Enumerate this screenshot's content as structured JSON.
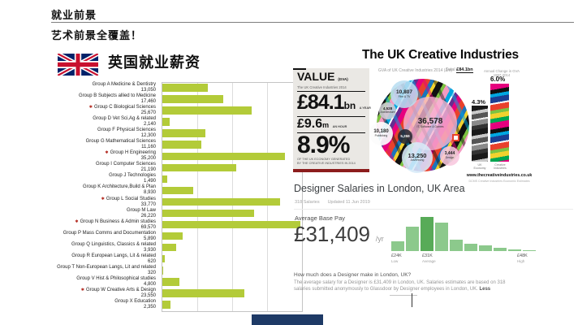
{
  "slide": {
    "title": "就业前景",
    "subtitle": "艺术前景全覆盖！"
  },
  "uk_salary_chart": {
    "heading": "英国就业薪资",
    "bar_color": "#b3cb39",
    "marker_color": "#b3281e",
    "axis_max": 40000,
    "rows": [
      {
        "label": "Group A Medicine & Dentistry",
        "value": "13,050",
        "marked": false
      },
      {
        "label": "Group B Subjects allied to Medicine",
        "value": "17,460",
        "marked": false
      },
      {
        "label": "Group C Biological Sciences",
        "value": "25,670",
        "marked": true
      },
      {
        "label": "Group D Vet Sci,Ag & related",
        "value": "2,140",
        "marked": false
      },
      {
        "label": "Group F Physical Sciences",
        "value": "12,300",
        "marked": false
      },
      {
        "label": "Group G Mathematical Sciences",
        "value": "11,160",
        "marked": false
      },
      {
        "label": "Group H Engineering",
        "value": "35,200",
        "marked": true
      },
      {
        "label": "Group I Computer Sciences",
        "value": "21,190",
        "marked": false
      },
      {
        "label": "Group J Technologies",
        "value": "1,490",
        "marked": false
      },
      {
        "label": "Group K Architecture,Build & Plan",
        "value": "8,930",
        "marked": false
      },
      {
        "label": "Group L Social Studies",
        "value": "33,770",
        "marked": true
      },
      {
        "label": "Group M Law",
        "value": "26,220",
        "marked": false
      },
      {
        "label": "Group N Business & Admin studies",
        "value": "69,570",
        "marked": true
      },
      {
        "label": "Group P Mass Comms and Documentation",
        "value": "5,890",
        "marked": false
      },
      {
        "label": "Group Q Linguistics, Classics & related",
        "value": "3,930",
        "marked": false
      },
      {
        "label": "Group R European Langs, Lit & related",
        "value": "620",
        "marked": false
      },
      {
        "label": "Group T Non-European Langs, Lit and related",
        "value": "320",
        "marked": false
      },
      {
        "label": "Group V Hist & Philosophical studies",
        "value": "4,800",
        "marked": false
      },
      {
        "label": "Group W Creative Arts & Design",
        "value": "23,550",
        "marked": true
      },
      {
        "label": "Group X Education",
        "value": "2,350",
        "marked": false
      }
    ]
  },
  "creative_industries": {
    "title": "The UK Creative Industries",
    "subtitle": "GVA of UK Creative Industries 2014 (£m)",
    "total_prefix": "Total ",
    "total_value": "£84.1bn",
    "value_card": {
      "heading": "VALUE",
      "heading_suffix": "(GVA)",
      "subheading": "The UK Creative Industries 2014",
      "stat_year_value": "£84.1",
      "stat_year_unit": "bn",
      "stat_year_note": "A YEAR",
      "stat_hour_value": "£9.6",
      "stat_hour_unit": "m",
      "stat_hour_note": "AN HOUR",
      "stat_share": "8.9%",
      "caption_line1": "OF THE UK ECONOMY GENERATED",
      "caption_line2": "BY THE CREATIVE INDUSTRIES IN 2014"
    },
    "pie_bubbles": [
      {
        "value": "36,578",
        "label": "IT, Software & Games"
      },
      {
        "value": "13,250",
        "label": "Advertising"
      },
      {
        "value": "10,807",
        "label": "Film & TV"
      },
      {
        "value": "10,180",
        "label": "Publishing"
      },
      {
        "value": "5,259",
        "label": ""
      },
      {
        "value": "4,528",
        "label": "Architecture"
      },
      {
        "value": "3,444",
        "label": "Design"
      }
    ],
    "growth": {
      "header_line1": "Annual Change in GVA",
      "header_line2": "1997-2014",
      "bars": [
        {
          "label_line1": "UK",
          "label_line2": "Economy",
          "value": "4.3%"
        },
        {
          "label_line1": "Creative",
          "label_line2": "Industries",
          "value": "6.0%"
        }
      ],
      "website": "www.thecreativeindustries.co.uk",
      "source": "DCMS Creative Industries Economic Estimates"
    }
  },
  "glassdoor": {
    "heading": "Designer Salaries in London, UK Area",
    "meta_salaries": "318 Salaries",
    "meta_updated": "Updated 11 Jun 2019",
    "avg_label": "Average Base Pay",
    "avg_value": "£31,409",
    "avg_unit": "/yr",
    "histogram": {
      "bar_color": "#8cc98c",
      "highlight_color": "#58ab58",
      "highlight_index": 2,
      "rel_heights": [
        12,
        30,
        42,
        35,
        14,
        9,
        7,
        4,
        2,
        1
      ],
      "ticks": [
        {
          "value": "£24K",
          "label": "Low"
        },
        {
          "value": "£31K",
          "label": "Average"
        },
        {
          "value": "£48K",
          "label": "High"
        }
      ]
    },
    "question": "How much does a Designer make in London, UK?",
    "answer_line1": "The average salary for a Designer is £31,409 in London, UK. Salaries estimates are based on 318",
    "answer_line2": "salaries submitted anonymously to Glassdoor by Designer employees in London, UK. ",
    "answer_more": "Less"
  },
  "chart_data": [
    {
      "type": "bar",
      "orientation": "horizontal",
      "title": "英国就业薪资",
      "categories": [
        "Group A Medicine & Dentistry",
        "Group B Subjects allied to Medicine",
        "Group C Biological Sciences",
        "Group D Vet Sci,Ag & related",
        "Group F Physical Sciences",
        "Group G Mathematical Sciences",
        "Group H Engineering",
        "Group I Computer Sciences",
        "Group J Technologies",
        "Group K Architecture,Build & Plan",
        "Group L Social Studies",
        "Group M Law",
        "Group N Business & Admin studies",
        "Group P Mass Comms and Documentation",
        "Group Q Linguistics, Classics & related",
        "Group R European Langs, Lit & related",
        "Group T Non-European Langs, Lit and related",
        "Group V Hist & Philosophical studies",
        "Group W Creative Arts & Design",
        "Group X Education"
      ],
      "values": [
        13050,
        17460,
        25670,
        2140,
        12300,
        11160,
        35200,
        21190,
        1490,
        8930,
        33770,
        26220,
        69570,
        5890,
        3930,
        620,
        320,
        4800,
        23550,
        2350
      ],
      "highlighted_categories": [
        "Group C Biological Sciences",
        "Group H Engineering",
        "Group L Social Studies",
        "Group N Business & Admin studies",
        "Group W Creative Arts & Design"
      ],
      "xlim": [
        0,
        40000
      ],
      "grid": true,
      "legend": false,
      "bar_color": "#b3cb39"
    },
    {
      "type": "pie",
      "title": "GVA of UK Creative Industries 2014 (£m)",
      "labels": [
        "IT, Software & Games",
        "Advertising",
        "Film & TV",
        "Publishing",
        "Architecture",
        "Design",
        ""
      ],
      "values": [
        36578,
        13250,
        10807,
        10180,
        4528,
        3444,
        5259
      ],
      "total": "£84.1bn",
      "annotations": [
        "VALUE (GVA) £84.1bn A YEAR",
        "£9.6m AN HOUR",
        "8.9%"
      ]
    },
    {
      "type": "bar",
      "title": "Annual Change in GVA 1997-2014",
      "categories": [
        "UK Economy",
        "Creative Industries"
      ],
      "values": [
        4.3,
        6.0
      ],
      "unit": "%"
    },
    {
      "type": "bar",
      "title": "Designer Salaries in London, UK Area — salary distribution",
      "categories": [
        "£24K (Low)",
        "",
        "£31K (Average)",
        "",
        "",
        "",
        "",
        "",
        "",
        "£48K (High)"
      ],
      "values": [
        12,
        30,
        42,
        35,
        14,
        9,
        7,
        4,
        2,
        1
      ],
      "note": "y-axis unlabeled; values are relative bar heights",
      "average": "£31,409 /yr"
    }
  ]
}
